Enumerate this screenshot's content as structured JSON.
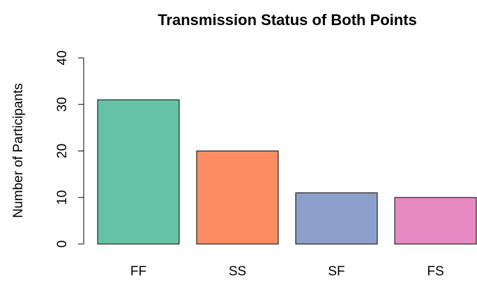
{
  "chart_data": {
    "type": "bar",
    "title": "Transmission Status of Both Points",
    "y_label": "Number of Participants",
    "categories": [
      "FF",
      "SS",
      "SF",
      "FS"
    ],
    "values": [
      31,
      20,
      11,
      10
    ],
    "colors": [
      "#66c2a5",
      "#fc8d62",
      "#8da0cb",
      "#e78ac3"
    ],
    "ylim": [
      0,
      40
    ],
    "yticks": [
      0,
      10,
      20,
      30,
      40
    ],
    "grid": false
  }
}
